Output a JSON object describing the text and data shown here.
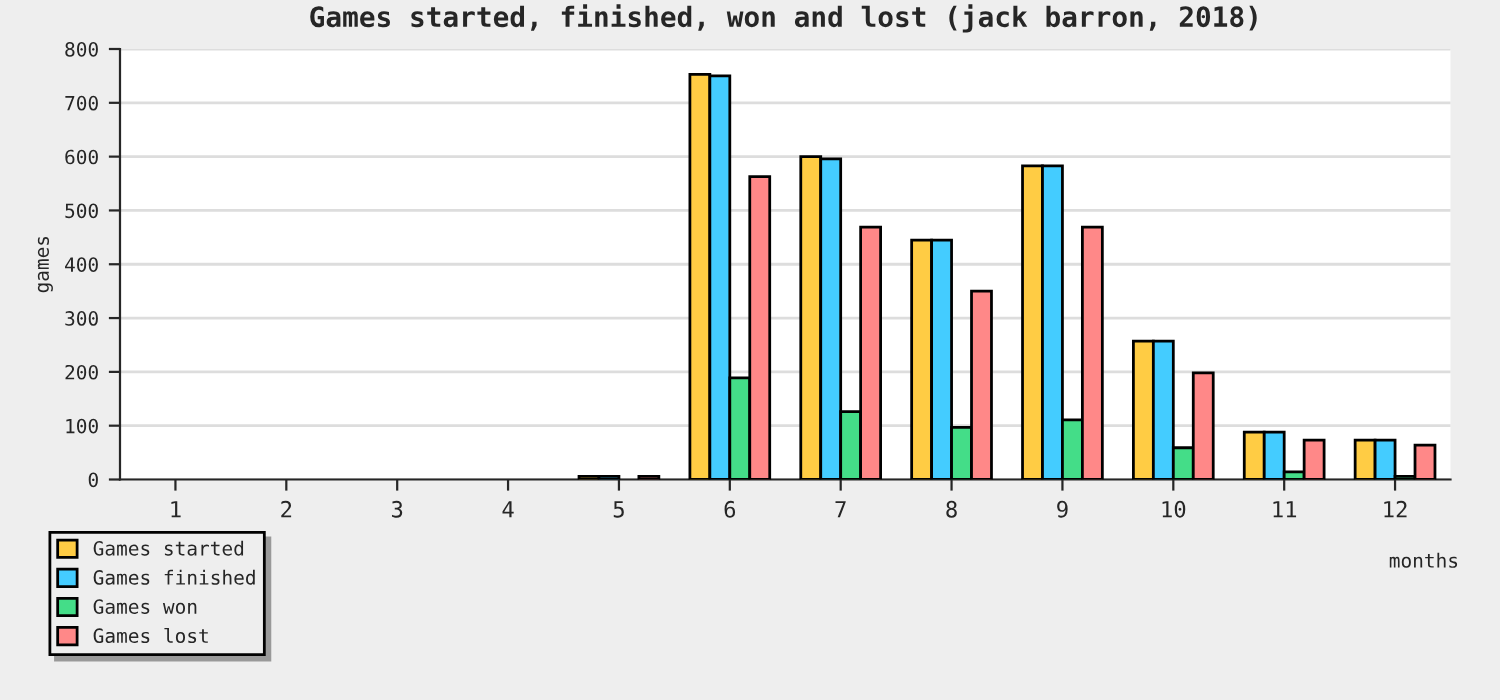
{
  "chart_data": {
    "type": "bar",
    "title": "Games started, finished, won and lost (jack barron, 2018)",
    "xlabel": "months",
    "ylabel": "games",
    "categories": [
      "1",
      "2",
      "3",
      "4",
      "5",
      "6",
      "7",
      "8",
      "9",
      "10",
      "11",
      "12"
    ],
    "series": [
      {
        "name": "Games started",
        "color": "#ffcc44",
        "values": [
          0,
          0,
          0,
          0,
          6,
          753,
          600,
          445,
          583,
          257,
          88,
          73
        ]
      },
      {
        "name": "Games finished",
        "color": "#44ccff",
        "values": [
          0,
          0,
          0,
          0,
          6,
          750,
          596,
          445,
          583,
          257,
          88,
          73
        ]
      },
      {
        "name": "Games won",
        "color": "#44dd88",
        "values": [
          0,
          0,
          0,
          0,
          0,
          189,
          126,
          97,
          111,
          59,
          14,
          6
        ]
      },
      {
        "name": "Games lost",
        "color": "#ff8888",
        "values": [
          0,
          0,
          0,
          0,
          6,
          563,
          469,
          350,
          469,
          198,
          73,
          64
        ]
      }
    ],
    "ylim": [
      0,
      800
    ],
    "yticks": [
      0,
      100,
      200,
      300,
      400,
      500,
      600,
      700,
      800
    ],
    "grid": "y",
    "legend": "bottom left"
  }
}
